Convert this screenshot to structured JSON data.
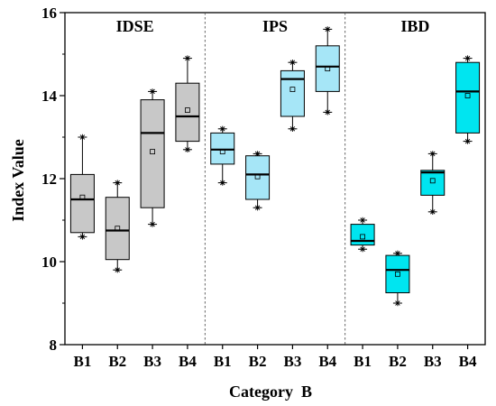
{
  "chart_data": {
    "type": "box",
    "xlabel": "Category  B",
    "ylabel": "Index Value",
    "ylim": [
      8,
      16
    ],
    "yticks": [
      8,
      10,
      12,
      14,
      16
    ],
    "grid": false,
    "groups": [
      {
        "name": "IDSE",
        "color": "#c8c8c8",
        "boxes": [
          {
            "category": "B1",
            "whisker_low": 10.6,
            "q1": 10.7,
            "median": 11.5,
            "q3": 12.1,
            "whisker_high": 13.0,
            "mean": 11.55
          },
          {
            "category": "B2",
            "whisker_low": 9.8,
            "q1": 10.05,
            "median": 10.75,
            "q3": 11.55,
            "whisker_high": 11.9,
            "mean": 10.8
          },
          {
            "category": "B3",
            "whisker_low": 10.9,
            "q1": 11.3,
            "median": 13.1,
            "q3": 13.9,
            "whisker_high": 14.1,
            "mean": 12.65
          },
          {
            "category": "B4",
            "whisker_low": 12.7,
            "q1": 12.9,
            "median": 13.5,
            "q3": 14.3,
            "whisker_high": 14.9,
            "mean": 13.65
          }
        ]
      },
      {
        "name": "IPS",
        "color": "#a6e6f7",
        "boxes": [
          {
            "category": "B1",
            "whisker_low": 11.9,
            "q1": 12.35,
            "median": 12.7,
            "q3": 13.1,
            "whisker_high": 13.2,
            "mean": 12.65
          },
          {
            "category": "B2",
            "whisker_low": 11.3,
            "q1": 11.5,
            "median": 12.1,
            "q3": 12.55,
            "whisker_high": 12.6,
            "mean": 12.05
          },
          {
            "category": "B3",
            "whisker_low": 13.2,
            "q1": 13.5,
            "median": 14.4,
            "q3": 14.6,
            "whisker_high": 14.8,
            "mean": 14.15
          },
          {
            "category": "B4",
            "whisker_low": 13.6,
            "q1": 14.1,
            "median": 14.7,
            "q3": 15.2,
            "whisker_high": 15.6,
            "mean": 14.65
          }
        ]
      },
      {
        "name": "IBD",
        "color": "#00e5f0",
        "boxes": [
          {
            "category": "B1",
            "whisker_low": 10.3,
            "q1": 10.4,
            "median": 10.5,
            "q3": 10.9,
            "whisker_high": 11.0,
            "mean": 10.6
          },
          {
            "category": "B2",
            "whisker_low": 9.0,
            "q1": 9.25,
            "median": 9.8,
            "q3": 10.15,
            "whisker_high": 10.2,
            "mean": 9.7
          },
          {
            "category": "B3",
            "whisker_low": 11.2,
            "q1": 11.6,
            "median": 12.15,
            "q3": 12.2,
            "whisker_high": 12.6,
            "mean": 11.95
          },
          {
            "category": "B4",
            "whisker_low": 12.9,
            "q1": 13.1,
            "median": 14.1,
            "q3": 14.8,
            "whisker_high": 14.9,
            "mean": 14.0
          }
        ]
      }
    ]
  }
}
